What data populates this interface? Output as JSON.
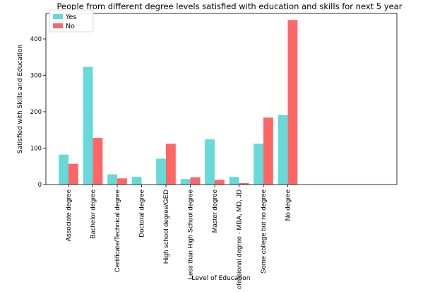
{
  "chart_data": {
    "type": "bar",
    "title": "People from different degree levels satisfied with education and skills for next 5 year",
    "xlabel": "Level of Education",
    "ylabel": "Satisfied with Skills and Education",
    "categories": [
      "Associate degree",
      "Bachelor degree",
      "Certificate/Technical degree",
      "Doctoral degree",
      "High school degree/GED",
      "Less than High School degree",
      "Master degree",
      "Professional degree - MBA, MD, JD",
      "Some college but no degree",
      "No degree"
    ],
    "series": [
      {
        "name": "Yes",
        "color": "#66d9d9",
        "values": [
          82,
          323,
          28,
          21,
          71,
          15,
          124,
          21,
          112,
          191
        ]
      },
      {
        "name": "No",
        "color": "#ff6666",
        "values": [
          57,
          128,
          17,
          0,
          112,
          20,
          13,
          4,
          184,
          452
        ]
      }
    ],
    "ylim": [
      0,
      470
    ],
    "yticks": [
      "0",
      "100",
      "200",
      "300",
      "400"
    ],
    "legend_position": "top-left",
    "grid": false
  }
}
